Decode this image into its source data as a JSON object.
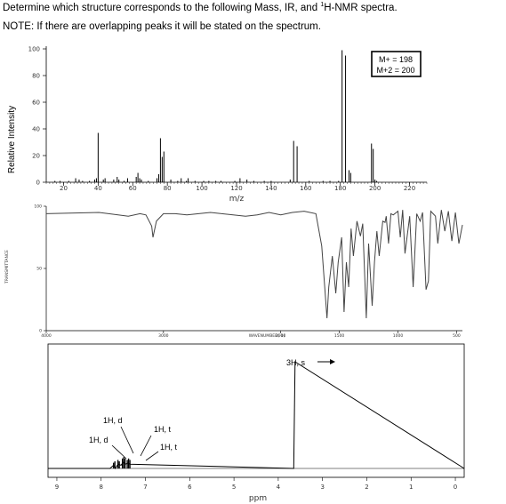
{
  "header": {
    "question_pre": "Determine which structure corresponds to the following Mass, IR, and ",
    "question_sup": "1",
    "question_post": "H-NMR spectra.",
    "note": "NOTE:  If there are overlapping peaks it will be stated on the spectrum."
  },
  "mass": {
    "ylabel": "Relative Intensity",
    "xlabel": "m/z",
    "y_ticks": [
      "100",
      "80",
      "60",
      "40",
      "20",
      "0"
    ],
    "x_ticks": [
      "20",
      "40",
      "60",
      "80",
      "100",
      "120",
      "140",
      "160",
      "180",
      "200",
      "220"
    ],
    "box_line1": "M+ = 198",
    "box_line2": "M+2 = 200"
  },
  "ir": {
    "y_ticks": [
      "100",
      "50",
      "0"
    ],
    "x_ticks": [
      "4000",
      "3000",
      "2000",
      "1500",
      "1000",
      "500"
    ],
    "xlabel": "WAVENUMBER(-1)",
    "ylabel": "TRANSMITTANCE"
  },
  "nmr": {
    "x_ticks": [
      "9",
      "8",
      "7",
      "6",
      "5",
      "4",
      "3",
      "2",
      "1",
      "0"
    ],
    "xlabel": "ppm",
    "labels": {
      "singlet": "3H, s",
      "d1": "1H, d",
      "d2": "1H, d",
      "t1": "1H, t",
      "t2": "1H, t"
    }
  },
  "chart_data": [
    {
      "type": "bar",
      "title": "",
      "xlabel": "m/z",
      "ylabel": "Relative Intensity",
      "xlim": [
        10,
        230
      ],
      "ylim": [
        0,
        100
      ],
      "x": [
        15,
        18,
        23,
        27,
        29,
        31,
        35,
        38,
        39,
        40,
        43,
        44,
        49,
        51,
        52,
        55,
        57,
        62,
        63,
        64,
        65,
        69,
        74,
        75,
        76,
        77,
        78,
        82,
        86,
        88,
        91,
        92,
        96,
        101,
        104,
        108,
        111,
        119,
        122,
        126,
        130,
        136,
        140,
        151,
        153,
        155,
        162,
        170,
        174,
        179,
        181,
        183,
        185,
        186,
        198,
        199,
        200,
        201
      ],
      "y": [
        1,
        1,
        1,
        3,
        2,
        1,
        1,
        2,
        3,
        37,
        2,
        3,
        2,
        4,
        2,
        1,
        3,
        4,
        7,
        3,
        2,
        1,
        3,
        6,
        33,
        19,
        23,
        2,
        1,
        3,
        1,
        3,
        1,
        1,
        1,
        1,
        1,
        1,
        3,
        2,
        1,
        1,
        1,
        2,
        31,
        27,
        1,
        1,
        1,
        1,
        99,
        95,
        9,
        7,
        29,
        25,
        2,
        1
      ]
    },
    {
      "type": "line",
      "title": "",
      "xlabel": "WAVENUMBER(-1)",
      "ylabel": "TRANSMITTANCE",
      "xlim": [
        4000,
        450
      ],
      "ylim": [
        0,
        100
      ],
      "x": [
        4000,
        3550,
        3300,
        3200,
        3150,
        3100,
        3090,
        3060,
        3000,
        2900,
        2800,
        2600,
        2300,
        2200,
        2100,
        2000,
        1900,
        1800,
        1700,
        1650,
        1605,
        1590,
        1560,
        1530,
        1510,
        1480,
        1460,
        1440,
        1420,
        1400,
        1380,
        1350,
        1320,
        1300,
        1270,
        1250,
        1220,
        1200,
        1180,
        1160,
        1130,
        1110,
        1100,
        1080,
        1060,
        1040,
        1000,
        980,
        960,
        940,
        900,
        870,
        840,
        810,
        790,
        760,
        740,
        720,
        700,
        680,
        660,
        630,
        600,
        570,
        540,
        510,
        480,
        450
      ],
      "y": [
        94,
        95,
        92,
        94,
        93,
        84,
        75,
        88,
        94,
        94,
        93,
        95,
        92,
        93,
        95,
        93,
        95,
        96,
        94,
        68,
        10,
        35,
        60,
        30,
        55,
        75,
        15,
        55,
        35,
        82,
        60,
        88,
        76,
        86,
        10,
        70,
        20,
        55,
        80,
        60,
        88,
        87,
        92,
        70,
        94,
        93,
        96,
        75,
        97,
        62,
        92,
        35,
        94,
        88,
        95,
        33,
        40,
        96,
        94,
        92,
        70,
        97,
        80,
        96,
        72,
        95,
        70,
        85
      ]
    },
    {
      "type": "line",
      "title": "",
      "xlabel": "ppm",
      "ylabel": "",
      "xlim": [
        9.2,
        -0.2
      ],
      "ylim": [
        0,
        100
      ],
      "x": [
        9.2,
        7.8,
        7.72,
        7.68,
        7.62,
        7.55,
        7.5,
        7.45,
        7.4,
        7.35,
        3.65,
        3.62,
        -0.2
      ],
      "y": [
        0,
        0,
        3,
        0,
        4,
        3,
        6,
        4,
        5,
        4,
        0,
        100,
        0
      ]
    }
  ]
}
